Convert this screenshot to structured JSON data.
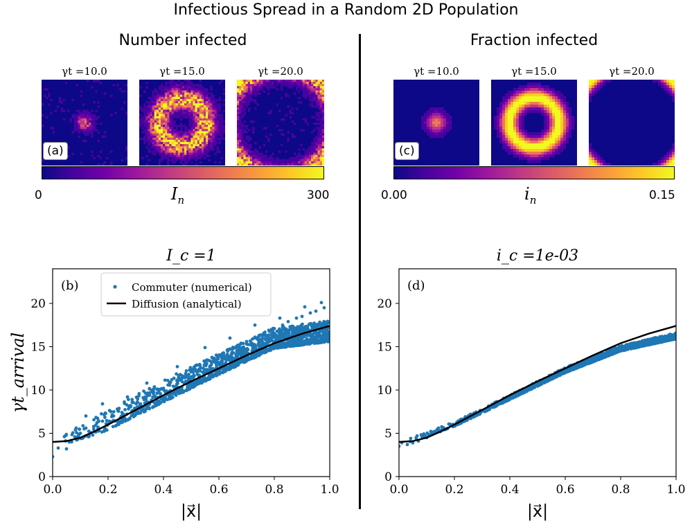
{
  "figure": {
    "suptitle": "Infectious Spread in a Random 2D Population"
  },
  "colors": {
    "background": "#0d0887",
    "cmap": [
      "#0d0887",
      "#46039f",
      "#7201a8",
      "#9c179e",
      "#bd3786",
      "#d8576b",
      "#ed7953",
      "#fb9f3a",
      "#fdca26",
      "#f0f921"
    ],
    "scatter": "#1f77b4",
    "line": "#000000"
  },
  "left_top": {
    "title": "Number infected",
    "frames": [
      {
        "title": "γt =10.0"
      },
      {
        "title": "γt =15.0"
      },
      {
        "title": "γt =20.0"
      }
    ],
    "panel_label": "(a)",
    "colorbar": {
      "min_label": "0",
      "max_label": "300",
      "label": "I_n",
      "vmin": 0,
      "vmax": 300
    },
    "ring_level": [
      0.1,
      0.55,
      1.0
    ]
  },
  "right_top": {
    "title": "Fraction infected",
    "frames": [
      {
        "title": "γt =10.0"
      },
      {
        "title": "γt =15.0"
      },
      {
        "title": "γt =20.0"
      }
    ],
    "panel_label": "(c)",
    "colorbar": {
      "min_label": "0.00",
      "max_label": "0.15",
      "label": "i_n",
      "vmin": 0.0,
      "vmax": 0.15
    }
  },
  "chart_data": [
    {
      "type": "scatter",
      "id": "b",
      "title": "I_c =1",
      "panel_label": "(b)",
      "xlabel": "|x⃗|",
      "ylabel": "γt_arrival",
      "xlim": [
        0.0,
        1.0
      ],
      "ylim": [
        0,
        24
      ],
      "xticks": [
        "0.0",
        "0.2",
        "0.4",
        "0.6",
        "0.8",
        "1.0"
      ],
      "yticks": [
        "0",
        "5",
        "10",
        "15",
        "20"
      ],
      "legend": {
        "position": "upper-center",
        "entries": [
          "Commuter (numerical)",
          "Diffusion (analytical)"
        ]
      },
      "series": [
        {
          "name": "Commuter (numerical)",
          "kind": "scatter",
          "points": [
            [
              0.0,
              2.3
            ],
            [
              0.02,
              3.3
            ],
            [
              0.05,
              3.2
            ],
            [
              0.06,
              4.0
            ],
            [
              0.08,
              4.6
            ],
            [
              0.1,
              5.0
            ],
            [
              0.12,
              5.6
            ],
            [
              0.15,
              5.2
            ],
            [
              0.18,
              6.4
            ],
            [
              0.2,
              6.1
            ],
            [
              0.22,
              7.0
            ],
            [
              0.25,
              7.4
            ],
            [
              0.28,
              8.2
            ],
            [
              0.3,
              7.8
            ],
            [
              0.33,
              8.9
            ],
            [
              0.35,
              9.4
            ],
            [
              0.38,
              9.7
            ],
            [
              0.4,
              10.2
            ],
            [
              0.43,
              11.2
            ],
            [
              0.45,
              11.0
            ],
            [
              0.48,
              11.9
            ],
            [
              0.5,
              12.1
            ],
            [
              0.53,
              12.9
            ],
            [
              0.55,
              13.2
            ],
            [
              0.58,
              13.6
            ],
            [
              0.6,
              14.0
            ],
            [
              0.63,
              14.6
            ],
            [
              0.65,
              14.8
            ],
            [
              0.68,
              15.4
            ],
            [
              0.7,
              15.6
            ],
            [
              0.73,
              16.1
            ],
            [
              0.75,
              16.3
            ],
            [
              0.78,
              16.9
            ],
            [
              0.8,
              17.1
            ],
            [
              0.83,
              17.5
            ],
            [
              0.85,
              17.9
            ],
            [
              0.88,
              18.3
            ],
            [
              0.9,
              18.5
            ],
            [
              0.93,
              18.9
            ],
            [
              0.95,
              19.1
            ],
            [
              0.98,
              19.5
            ],
            [
              1.0,
              17.8
            ],
            [
              0.12,
              7.0
            ],
            [
              0.18,
              8.4
            ],
            [
              0.27,
              9.2
            ],
            [
              0.34,
              10.8
            ],
            [
              0.45,
              12.7
            ],
            [
              0.55,
              14.9
            ],
            [
              0.64,
              16.0
            ],
            [
              0.73,
              17.5
            ],
            [
              0.82,
              18.3
            ],
            [
              0.91,
              19.6
            ],
            [
              0.97,
              20.1
            ]
          ],
          "band": {
            "lower": [
              [
                0.0,
                3.0
              ],
              [
                0.2,
                5.4
              ],
              [
                0.4,
                8.6
              ],
              [
                0.6,
                11.8
              ],
              [
                0.8,
                14.8
              ],
              [
                1.0,
                15.6
              ]
            ],
            "upper": [
              [
                0.0,
                4.8
              ],
              [
                0.2,
                7.6
              ],
              [
                0.4,
                11.2
              ],
              [
                0.6,
                14.2
              ],
              [
                0.8,
                17.2
              ],
              [
                1.0,
                18.0
              ]
            ]
          }
        },
        {
          "name": "Diffusion (analytical)",
          "kind": "line",
          "points": [
            [
              0.0,
              4.0
            ],
            [
              0.05,
              4.1
            ],
            [
              0.1,
              4.5
            ],
            [
              0.15,
              5.2
            ],
            [
              0.2,
              6.0
            ],
            [
              0.3,
              7.7
            ],
            [
              0.4,
              9.4
            ],
            [
              0.5,
              11.0
            ],
            [
              0.6,
              12.5
            ],
            [
              0.7,
              14.0
            ],
            [
              0.8,
              15.4
            ],
            [
              0.9,
              16.5
            ],
            [
              1.0,
              17.4
            ]
          ]
        }
      ]
    },
    {
      "type": "scatter",
      "id": "d",
      "title": "i_c =1e-03",
      "panel_label": "(d)",
      "xlabel": "|x⃗|",
      "ylabel": "",
      "xlim": [
        0.0,
        1.0
      ],
      "ylim": [
        0,
        24
      ],
      "xticks": [
        "0.0",
        "0.2",
        "0.4",
        "0.6",
        "0.8",
        "1.0"
      ],
      "yticks": [
        "0",
        "5",
        "10",
        "15",
        "20"
      ],
      "series": [
        {
          "name": "Commuter (numerical)",
          "kind": "scatter",
          "points": [
            [
              0.0,
              3.5
            ],
            [
              0.01,
              3.9
            ],
            [
              0.03,
              3.7
            ],
            [
              0.05,
              3.9
            ],
            [
              0.07,
              4.1
            ],
            [
              0.1,
              4.5
            ],
            [
              0.15,
              5.2
            ],
            [
              0.2,
              6.0
            ],
            [
              0.25,
              6.8
            ],
            [
              0.3,
              7.6
            ],
            [
              0.35,
              8.4
            ],
            [
              0.4,
              9.2
            ],
            [
              0.45,
              10.0
            ],
            [
              0.5,
              10.8
            ],
            [
              0.55,
              11.6
            ],
            [
              0.6,
              12.4
            ],
            [
              0.65,
              13.1
            ],
            [
              0.7,
              13.8
            ],
            [
              0.75,
              14.4
            ],
            [
              0.8,
              14.9
            ],
            [
              0.85,
              15.3
            ],
            [
              0.9,
              15.7
            ],
            [
              0.95,
              16.0
            ],
            [
              1.0,
              16.3
            ]
          ],
          "band": {
            "lower": [
              [
                0.0,
                3.6
              ],
              [
                0.2,
                5.8
              ],
              [
                0.4,
                8.9
              ],
              [
                0.6,
                12.0
              ],
              [
                0.8,
                14.5
              ],
              [
                1.0,
                15.9
              ]
            ],
            "upper": [
              [
                0.0,
                4.0
              ],
              [
                0.2,
                6.3
              ],
              [
                0.4,
                9.4
              ],
              [
                0.6,
                12.6
              ],
              [
                0.8,
                15.1
              ],
              [
                1.0,
                16.6
              ]
            ]
          }
        },
        {
          "name": "Diffusion (analytical)",
          "kind": "line",
          "points": [
            [
              0.0,
              4.0
            ],
            [
              0.05,
              4.1
            ],
            [
              0.1,
              4.5
            ],
            [
              0.15,
              5.2
            ],
            [
              0.2,
              6.0
            ],
            [
              0.3,
              7.7
            ],
            [
              0.4,
              9.4
            ],
            [
              0.5,
              11.0
            ],
            [
              0.6,
              12.5
            ],
            [
              0.7,
              14.0
            ],
            [
              0.8,
              15.4
            ],
            [
              0.9,
              16.5
            ],
            [
              1.0,
              17.4
            ]
          ]
        }
      ]
    }
  ]
}
